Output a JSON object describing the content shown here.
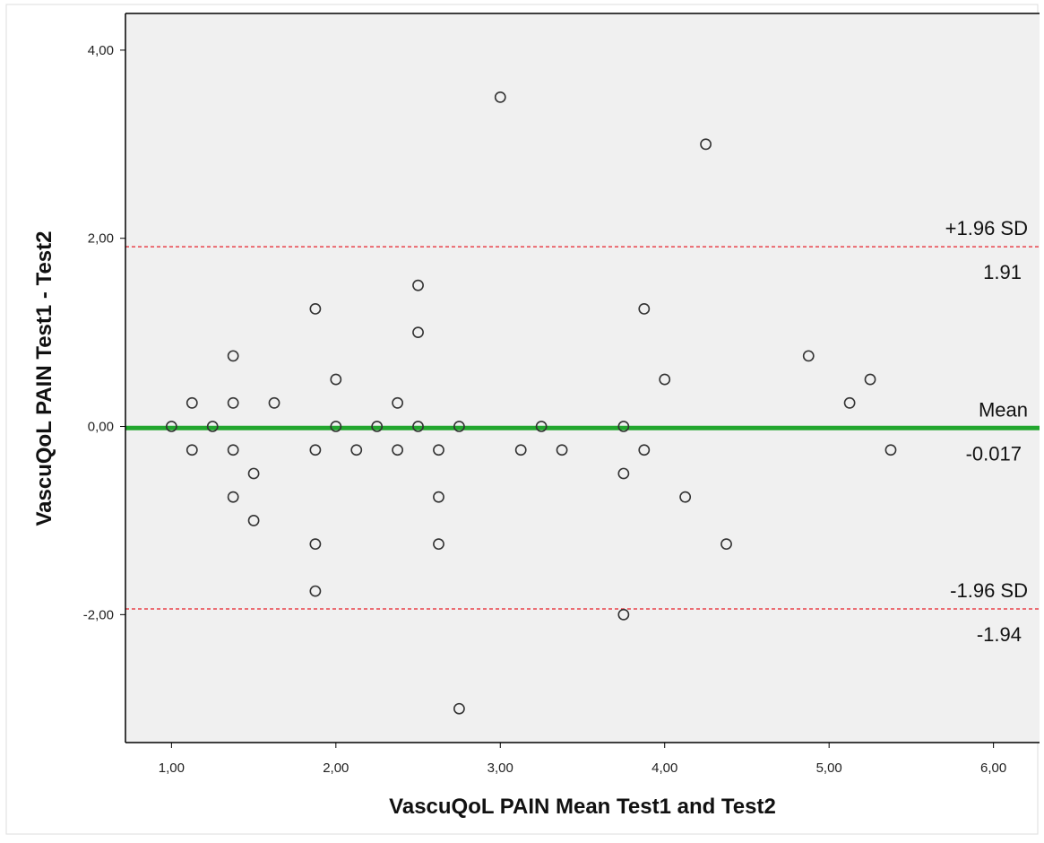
{
  "chart_data": {
    "type": "scatter",
    "title": "",
    "xlabel": "VascuQoL PAIN  Mean Test1 and Test2",
    "ylabel": "VascuQoL PAIN Test1 - Test2",
    "xlim": [
      0.72,
      6.28
    ],
    "ylim": [
      -3.36,
      4.39
    ],
    "x_ticks": [
      {
        "value": 1,
        "label": "1,00"
      },
      {
        "value": 2,
        "label": "2,00"
      },
      {
        "value": 3,
        "label": "3,00"
      },
      {
        "value": 4,
        "label": "4,00"
      },
      {
        "value": 5,
        "label": "5,00"
      },
      {
        "value": 6,
        "label": "6,00"
      }
    ],
    "y_ticks": [
      {
        "value": 4,
        "label": "4,00"
      },
      {
        "value": 2,
        "label": "2,00"
      },
      {
        "value": 0,
        "label": "0,00"
      },
      {
        "value": -2,
        "label": "-2,00"
      }
    ],
    "grid": false,
    "legend": "none",
    "plot_background": "#f0f0f0",
    "marker_color": "#333333",
    "points": [
      [
        1.0,
        0.0
      ],
      [
        1.125,
        0.25
      ],
      [
        1.125,
        -0.25
      ],
      [
        1.25,
        0.0
      ],
      [
        1.375,
        0.75
      ],
      [
        1.375,
        0.25
      ],
      [
        1.375,
        -0.25
      ],
      [
        1.375,
        -0.75
      ],
      [
        1.5,
        -0.5
      ],
      [
        1.5,
        -1.0
      ],
      [
        1.625,
        0.25
      ],
      [
        1.875,
        1.25
      ],
      [
        1.875,
        -0.25
      ],
      [
        1.875,
        -1.25
      ],
      [
        1.875,
        -1.75
      ],
      [
        2.0,
        0.5
      ],
      [
        2.0,
        0.0
      ],
      [
        2.125,
        -0.25
      ],
      [
        2.25,
        0.0
      ],
      [
        2.375,
        0.25
      ],
      [
        2.375,
        -0.25
      ],
      [
        2.5,
        1.5
      ],
      [
        2.5,
        1.0
      ],
      [
        2.5,
        0.0
      ],
      [
        2.625,
        -0.25
      ],
      [
        2.625,
        -0.75
      ],
      [
        2.625,
        -1.25
      ],
      [
        2.75,
        0.0
      ],
      [
        2.75,
        -3.0
      ],
      [
        3.0,
        3.5
      ],
      [
        3.125,
        -0.25
      ],
      [
        3.25,
        0.0
      ],
      [
        3.375,
        -0.25
      ],
      [
        3.75,
        0.0
      ],
      [
        3.75,
        -0.5
      ],
      [
        3.75,
        -2.0
      ],
      [
        3.875,
        1.25
      ],
      [
        3.875,
        -0.25
      ],
      [
        4.0,
        0.5
      ],
      [
        4.125,
        -0.75
      ],
      [
        4.25,
        3.0
      ],
      [
        4.375,
        -1.25
      ],
      [
        4.875,
        0.75
      ],
      [
        5.125,
        0.25
      ],
      [
        5.25,
        0.5
      ],
      [
        5.375,
        -0.25
      ]
    ],
    "reference_lines": [
      {
        "name": "+1.96 SD",
        "value": 1.91,
        "value_label": "1.91",
        "color": "#e8202a",
        "style": "dashed"
      },
      {
        "name": "Mean",
        "value": -0.017,
        "value_label": "-0.017",
        "color": "#22a62e",
        "style": "solid"
      },
      {
        "name": "-1.96 SD",
        "value": -1.94,
        "value_label": "-1.94",
        "color": "#e8202a",
        "style": "dashed"
      }
    ]
  }
}
